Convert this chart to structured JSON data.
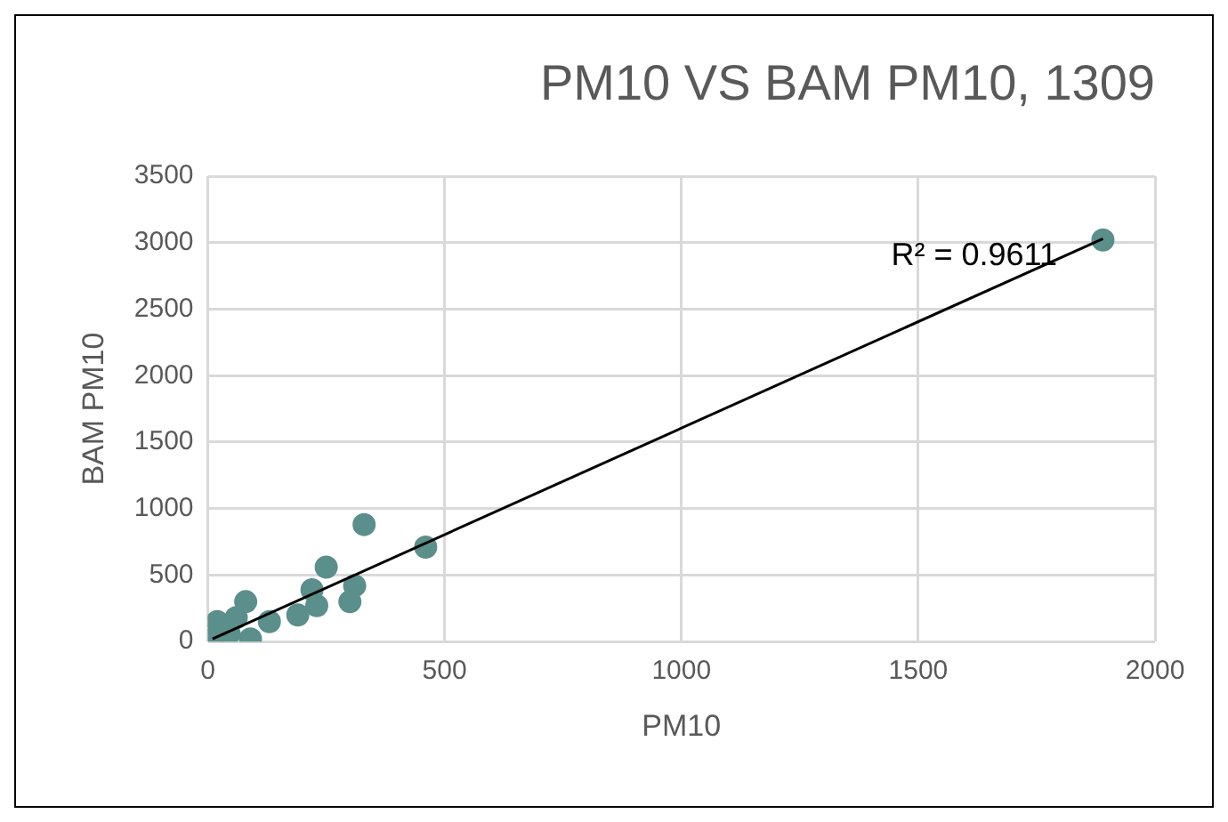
{
  "chart_data": {
    "type": "scatter",
    "title": "PM10 VS BAM PM10, 1309",
    "xlabel": "PM10",
    "ylabel": "BAM PM10",
    "xlim": [
      0,
      2000
    ],
    "xticks": [
      0,
      500,
      1000,
      1500,
      2000
    ],
    "ylim": [
      0,
      3500
    ],
    "yticks": [
      0,
      500,
      1000,
      1500,
      2000,
      2500,
      3000,
      3500
    ],
    "grid": true,
    "marker": "circle",
    "annotations": [
      "R² = 0.9611"
    ],
    "series": [
      {
        "color": "#5b8f8b",
        "x": [
          1890,
          330,
          460,
          250,
          220,
          310,
          300,
          230,
          190,
          80,
          90,
          5,
          20,
          45,
          60,
          130
        ],
        "values": [
          3020,
          880,
          710,
          560,
          390,
          420,
          300,
          270,
          200,
          300,
          20,
          10,
          150,
          60,
          180,
          150
        ]
      },
      {
        "type": "line",
        "color": "#000000",
        "marker": "none",
        "x": [
          10,
          1890
        ],
        "values": [
          20,
          3030
        ]
      }
    ]
  }
}
